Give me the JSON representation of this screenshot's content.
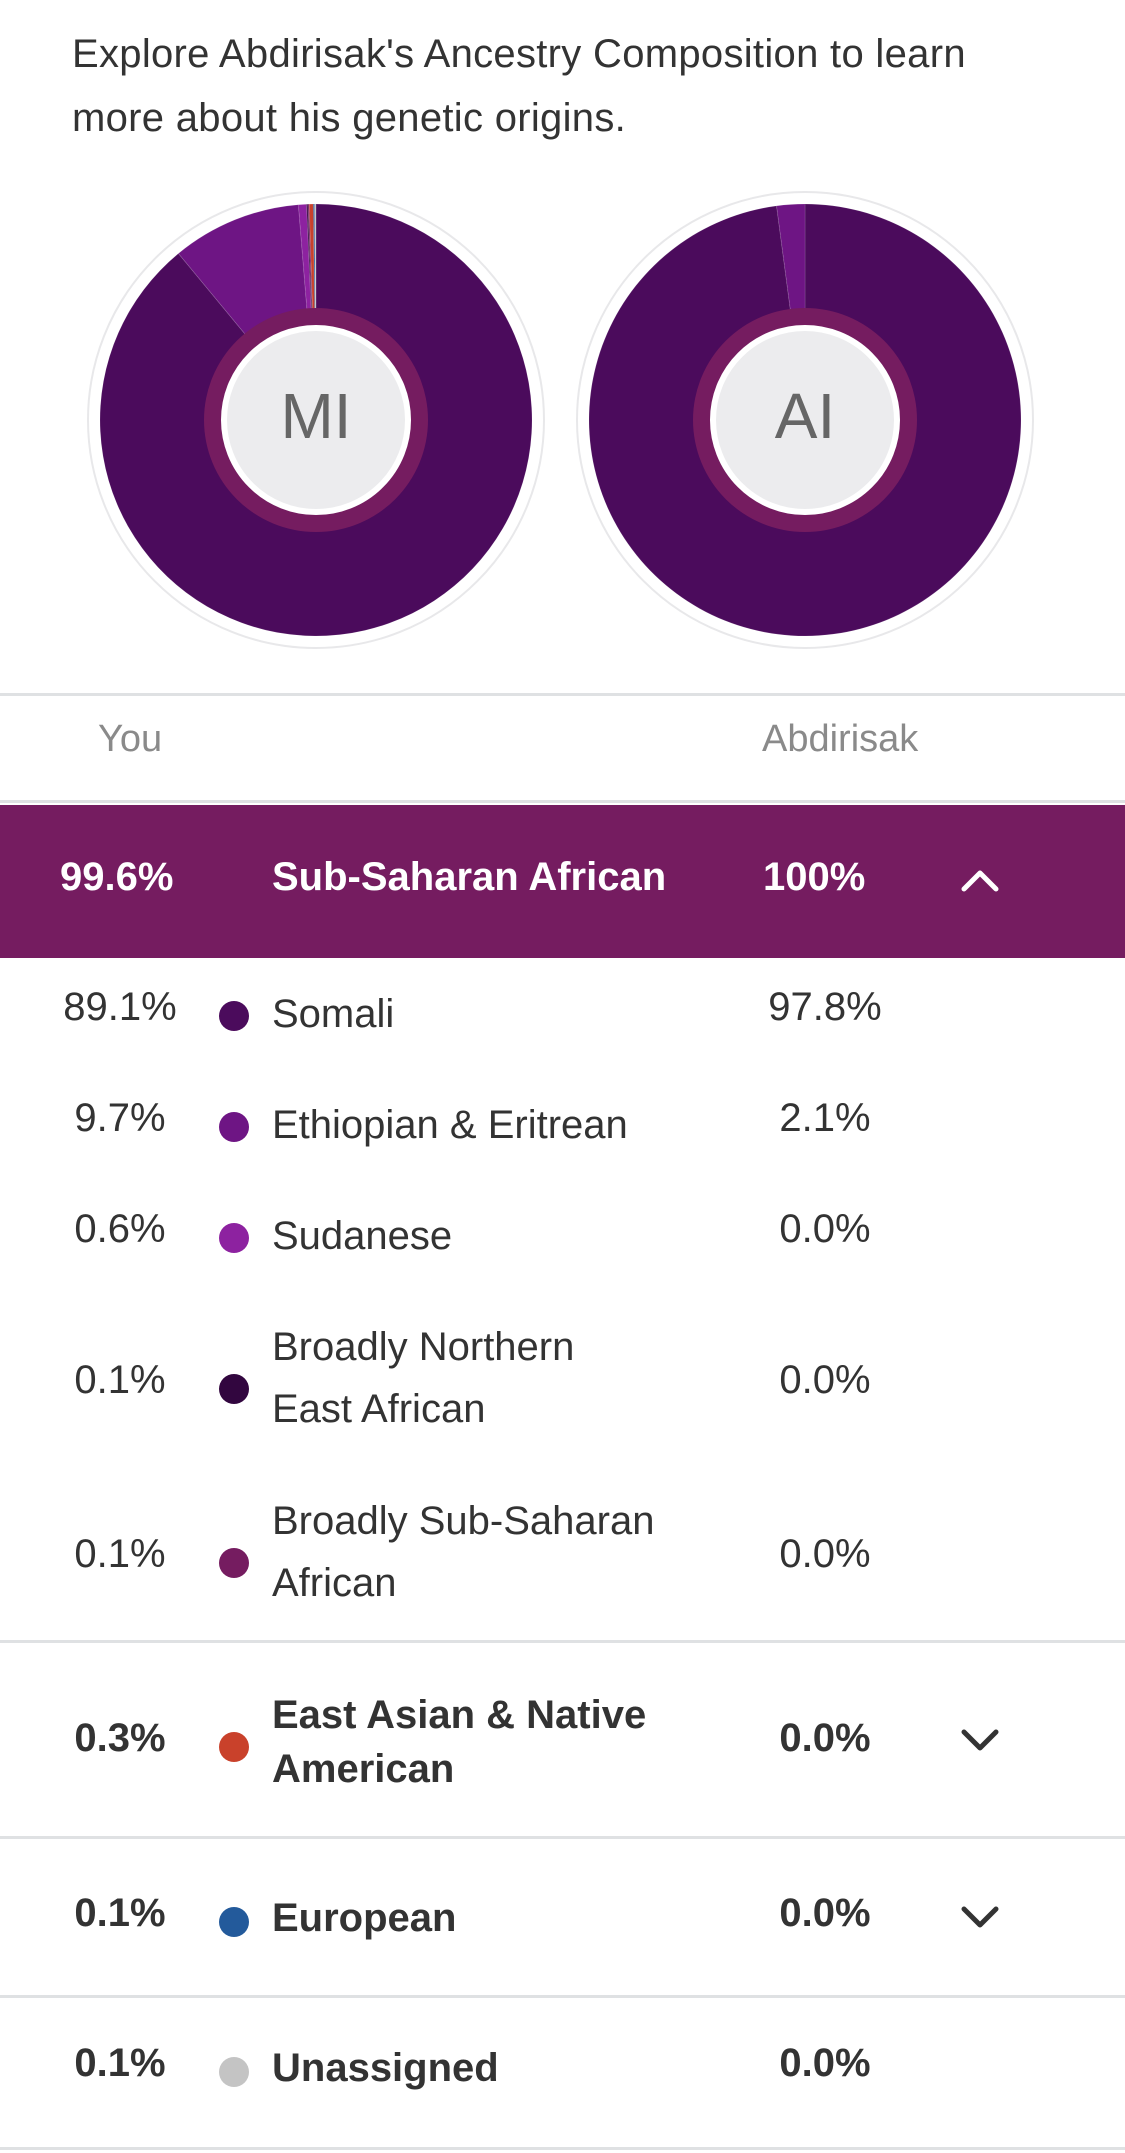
{
  "intro": "Explore Abdirisak's Ancestry Composition to learn more about his genetic origins.",
  "charts": {
    "you_initials": "MI",
    "relative_initials": "AI"
  },
  "columns": {
    "you": "You",
    "relative": "Abdirisak"
  },
  "expanded_group": {
    "you_pct": "99.6%",
    "label": "Sub-Saharan African",
    "relative_pct": "100%",
    "color": "#751c60"
  },
  "subregions": [
    {
      "you_pct": "89.1%",
      "label": "Somali",
      "relative_pct": "97.8%",
      "color": "#4b0b5c"
    },
    {
      "you_pct": "9.7%",
      "label": "Ethiopian & Eritrean",
      "relative_pct": "2.1%",
      "color": "#6e1584"
    },
    {
      "you_pct": "0.6%",
      "label": "Sudanese",
      "relative_pct": "0.0%",
      "color": "#8d22a0"
    },
    {
      "you_pct": "0.1%",
      "label": "Broadly Northern East African",
      "relative_pct": "0.0%",
      "color": "#32063f"
    },
    {
      "you_pct": "0.1%",
      "label": "Broadly Sub-Saharan African",
      "relative_pct": "0.0%",
      "color": "#751c60"
    }
  ],
  "groups": [
    {
      "you_pct": "0.3%",
      "label": "East Asian & Native American",
      "relative_pct": "0.0%",
      "color": "#c9412b",
      "expandable": true
    },
    {
      "you_pct": "0.1%",
      "label": "European",
      "relative_pct": "0.0%",
      "color": "#235a9b",
      "expandable": true
    },
    {
      "you_pct": "0.1%",
      "label": "Unassigned",
      "relative_pct": "0.0%",
      "color": "#c4c4c4",
      "expandable": false
    }
  ],
  "chart_data": [
    {
      "type": "pie",
      "categories": [
        "Somali",
        "Ethiopian & Eritrean",
        "Sudanese",
        "Broadly Northern East African",
        "Broadly Sub-Saharan African",
        "East Asian & Native American",
        "European",
        "Unassigned"
      ],
      "values": [
        89.1,
        9.7,
        0.6,
        0.1,
        0.1,
        0.3,
        0.1,
        0.1
      ]
    },
    {
      "type": "pie",
      "categories": [
        "Somali",
        "Ethiopian & Eritrean"
      ],
      "values": [
        97.8,
        2.1
      ]
    }
  ],
  "colors": {
    "somali": "#4b0b5c",
    "ethiopian": "#6e1584",
    "sudanese": "#8d22a0",
    "inner_ring": "#751c60",
    "center": "#ececee"
  }
}
